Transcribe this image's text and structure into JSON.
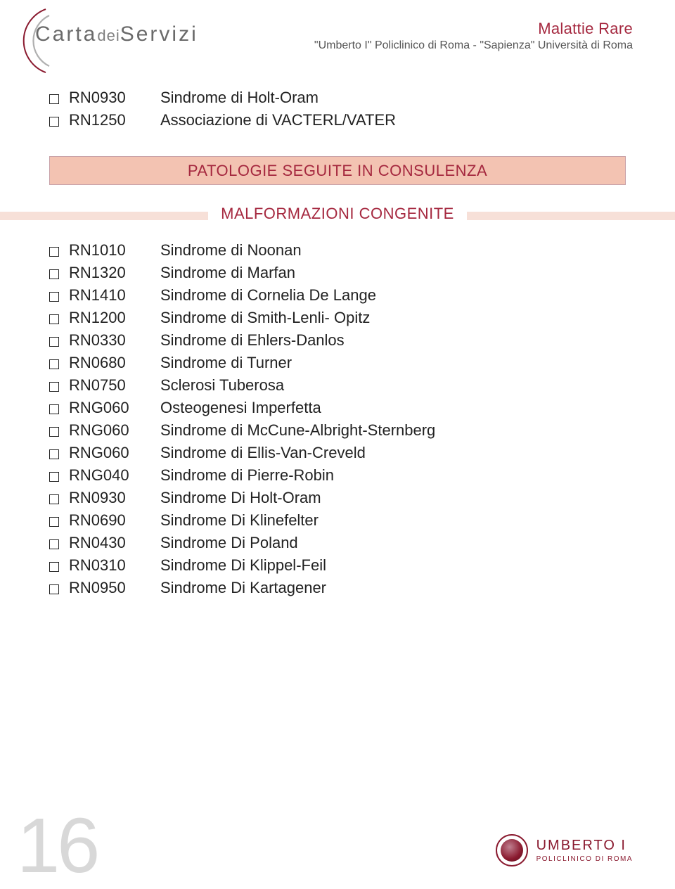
{
  "header": {
    "logo_main": "Carta",
    "logo_mid": "dei",
    "logo_end": "Servizi",
    "title": "Malattie Rare",
    "subtitle": "\"Umberto I\" Policlinico di Roma - \"Sapienza\" Università di Roma"
  },
  "top_rows": [
    {
      "code": "RN0930",
      "desc": "Sindrome di Holt-Oram"
    },
    {
      "code": "RN1250",
      "desc": "Associazione di VACTERL/VATER"
    }
  ],
  "banner": "PATOLOGIE SEGUITE IN CONSULENZA",
  "subbanner": "MALFORMAZIONI CONGENITE",
  "list": [
    {
      "code": "RN1010",
      "desc": "Sindrome di Noonan"
    },
    {
      "code": "RN1320",
      "desc": "Sindrome di Marfan"
    },
    {
      "code": "RN1410",
      "desc": "Sindrome di Cornelia De Lange"
    },
    {
      "code": "RN1200",
      "desc": "Sindrome di Smith-Lenli- Opitz"
    },
    {
      "code": "RN0330",
      "desc": "Sindrome di Ehlers-Danlos"
    },
    {
      "code": "RN0680",
      "desc": "Sindrome di Turner"
    },
    {
      "code": "RN0750",
      "desc": "Sclerosi Tuberosa"
    },
    {
      "code": "RNG060",
      "desc": "Osteogenesi Imperfetta"
    },
    {
      "code": "RNG060",
      "desc": "Sindrome di McCune-Albright-Sternberg"
    },
    {
      "code": "RNG060",
      "desc": "Sindrome di Ellis-Van-Creveld"
    },
    {
      "code": "RNG040",
      "desc": "Sindrome di Pierre-Robin"
    },
    {
      "code": "RN0930",
      "desc": "Sindrome Di Holt-Oram"
    },
    {
      "code": "RN0690",
      "desc": "Sindrome Di Klinefelter"
    },
    {
      "code": "RN0430",
      "desc": "Sindrome Di Poland"
    },
    {
      "code": "RN0310",
      "desc": "Sindrome Di Klippel-Feil"
    },
    {
      "code": "RN0950",
      "desc": "Sindrome Di Kartagener"
    }
  ],
  "page_number": "16",
  "footer": {
    "name": "UMBERTO I",
    "sub": "POLICLINICO DI ROMA"
  }
}
